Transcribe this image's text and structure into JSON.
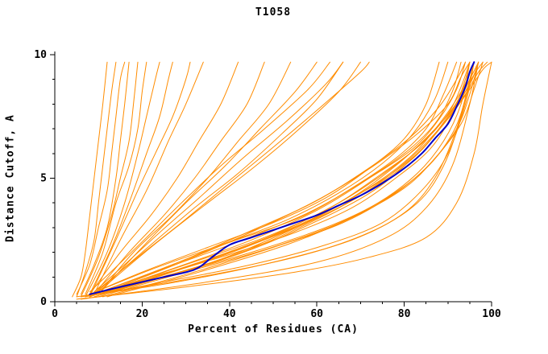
{
  "chart_data": {
    "type": "line",
    "title": "T1058",
    "xlabel": "Percent of Residues (CA)",
    "ylabel": "Distance Cutoff, A",
    "xlim": [
      0,
      100
    ],
    "ylim": [
      0,
      10
    ],
    "x_major_ticks": [
      0,
      20,
      40,
      60,
      80,
      100
    ],
    "x_minor_step": 5,
    "y_major_ticks": [
      0,
      5,
      10
    ],
    "y_minor_step": 1,
    "grid": false,
    "legend": "none",
    "colors": {
      "models": "#ff8c00",
      "highlight": "#0000cc",
      "axis": "#000000"
    },
    "model_series": [
      [
        [
          4,
          0.2
        ],
        [
          6,
          1
        ],
        [
          7,
          2
        ],
        [
          8,
          3.5
        ],
        [
          9,
          5
        ],
        [
          10,
          6.5
        ],
        [
          11,
          8
        ],
        [
          12,
          9.7
        ]
      ],
      [
        [
          5,
          0.2
        ],
        [
          7,
          1.2
        ],
        [
          9,
          2.5
        ],
        [
          10,
          4
        ],
        [
          11,
          5.5
        ],
        [
          12,
          7
        ],
        [
          13,
          8.5
        ],
        [
          14,
          9.7
        ]
      ],
      [
        [
          5,
          0.3
        ],
        [
          8,
          1.5
        ],
        [
          10,
          3
        ],
        [
          12,
          4.5
        ],
        [
          13,
          6
        ],
        [
          14,
          7.5
        ],
        [
          15,
          9
        ],
        [
          16,
          9.7
        ]
      ],
      [
        [
          6,
          0.3
        ],
        [
          9,
          1.5
        ],
        [
          12,
          3
        ],
        [
          14,
          5
        ],
        [
          15,
          6.5
        ],
        [
          16,
          8
        ],
        [
          17,
          9.7
        ]
      ],
      [
        [
          6,
          0.2
        ],
        [
          10,
          1.8
        ],
        [
          13,
          3.5
        ],
        [
          15,
          5
        ],
        [
          17,
          6.5
        ],
        [
          18,
          8
        ],
        [
          19,
          9.7
        ]
      ],
      [
        [
          7,
          0.3
        ],
        [
          11,
          2
        ],
        [
          14,
          4
        ],
        [
          17,
          5.5
        ],
        [
          19,
          7
        ],
        [
          20,
          8.5
        ],
        [
          21,
          9.7
        ]
      ],
      [
        [
          7,
          0.2
        ],
        [
          12,
          2
        ],
        [
          16,
          4
        ],
        [
          19,
          6
        ],
        [
          21,
          7.5
        ],
        [
          23,
          9
        ],
        [
          24,
          9.7
        ]
      ],
      [
        [
          8,
          0.3
        ],
        [
          13,
          2.2
        ],
        [
          17,
          4
        ],
        [
          21,
          6
        ],
        [
          24,
          7.5
        ],
        [
          26,
          9
        ],
        [
          27,
          9.7
        ]
      ],
      [
        [
          8,
          0.2
        ],
        [
          14,
          2.5
        ],
        [
          19,
          4.5
        ],
        [
          23,
          6
        ],
        [
          27,
          7.5
        ],
        [
          30,
          9
        ],
        [
          31,
          9.7
        ]
      ],
      [
        [
          9,
          0.3
        ],
        [
          15,
          2.5
        ],
        [
          21,
          4.5
        ],
        [
          26,
          6.5
        ],
        [
          30,
          8
        ],
        [
          34,
          9.7
        ]
      ],
      [
        [
          8,
          0.3
        ],
        [
          15,
          2
        ],
        [
          22,
          3.5
        ],
        [
          28,
          5
        ],
        [
          33,
          6.5
        ],
        [
          38,
          8
        ],
        [
          42,
          9.7
        ]
      ],
      [
        [
          9,
          0.3
        ],
        [
          17,
          2
        ],
        [
          25,
          3.5
        ],
        [
          32,
          5
        ],
        [
          38,
          6.5
        ],
        [
          44,
          8
        ],
        [
          48,
          9.7
        ]
      ],
      [
        [
          10,
          0.3
        ],
        [
          18,
          2
        ],
        [
          27,
          3.5
        ],
        [
          35,
          5
        ],
        [
          42,
          6.5
        ],
        [
          49,
          8
        ],
        [
          54,
          9.7
        ]
      ],
      [
        [
          10,
          0.3
        ],
        [
          20,
          2.2
        ],
        [
          30,
          4
        ],
        [
          39,
          5.5
        ],
        [
          47,
          7
        ],
        [
          55,
          8.5
        ],
        [
          60,
          9.7
        ]
      ],
      [
        [
          9,
          0.3
        ],
        [
          20,
          2
        ],
        [
          32,
          3.8
        ],
        [
          42,
          5.2
        ],
        [
          52,
          6.8
        ],
        [
          60,
          8.2
        ],
        [
          66,
          9.7
        ]
      ],
      [
        [
          10,
          0.4
        ],
        [
          22,
          2.2
        ],
        [
          35,
          4
        ],
        [
          46,
          5.5
        ],
        [
          56,
          7
        ],
        [
          65,
          8.5
        ],
        [
          70,
          9.7
        ]
      ],
      [
        [
          8,
          0.3
        ],
        [
          20,
          1.2
        ],
        [
          35,
          2.2
        ],
        [
          50,
          3.2
        ],
        [
          62,
          4.2
        ],
        [
          72,
          5.4
        ],
        [
          80,
          6.6
        ],
        [
          85,
          8
        ],
        [
          88,
          9.7
        ]
      ],
      [
        [
          8,
          0.3
        ],
        [
          22,
          1.3
        ],
        [
          38,
          2.3
        ],
        [
          53,
          3.3
        ],
        [
          65,
          4.4
        ],
        [
          75,
          5.6
        ],
        [
          82,
          6.8
        ],
        [
          87,
          8.2
        ],
        [
          90,
          9.7
        ]
      ],
      [
        [
          9,
          0.3
        ],
        [
          24,
          1.3
        ],
        [
          40,
          2.4
        ],
        [
          56,
          3.4
        ],
        [
          68,
          4.6
        ],
        [
          78,
          5.8
        ],
        [
          85,
          7
        ],
        [
          89,
          8.4
        ],
        [
          92,
          9.7
        ]
      ],
      [
        [
          9,
          0.3
        ],
        [
          26,
          1.4
        ],
        [
          43,
          2.5
        ],
        [
          58,
          3.6
        ],
        [
          70,
          4.8
        ],
        [
          80,
          6
        ],
        [
          87,
          7.2
        ],
        [
          91,
          8.5
        ],
        [
          93,
          9.7
        ]
      ],
      [
        [
          10,
          0.3
        ],
        [
          28,
          1.4
        ],
        [
          45,
          2.5
        ],
        [
          60,
          3.7
        ],
        [
          72,
          5
        ],
        [
          82,
          6.2
        ],
        [
          88,
          7.4
        ],
        [
          92,
          8.6
        ],
        [
          94,
          9.7
        ]
      ],
      [
        [
          10,
          0.3
        ],
        [
          30,
          1.5
        ],
        [
          48,
          2.6
        ],
        [
          63,
          3.8
        ],
        [
          75,
          5.2
        ],
        [
          84,
          6.4
        ],
        [
          90,
          7.6
        ],
        [
          93,
          8.7
        ],
        [
          95,
          9.7
        ]
      ],
      [
        [
          11,
          0.3
        ],
        [
          32,
          1.5
        ],
        [
          50,
          2.7
        ],
        [
          65,
          4
        ],
        [
          77,
          5.4
        ],
        [
          85,
          6.6
        ],
        [
          91,
          7.8
        ],
        [
          94,
          8.8
        ],
        [
          96,
          9.7
        ]
      ],
      [
        [
          11,
          0.4
        ],
        [
          34,
          1.6
        ],
        [
          52,
          2.8
        ],
        [
          67,
          4.1
        ],
        [
          78,
          5.5
        ],
        [
          86,
          6.8
        ],
        [
          92,
          8
        ],
        [
          95,
          9
        ],
        [
          97,
          9.7
        ]
      ],
      [
        [
          12,
          0.4
        ],
        [
          36,
          1.6
        ],
        [
          54,
          2.9
        ],
        [
          69,
          4.2
        ],
        [
          80,
          5.6
        ],
        [
          88,
          7
        ],
        [
          93,
          8.2
        ],
        [
          96,
          9.2
        ],
        [
          98,
          9.7
        ]
      ],
      [
        [
          12,
          0.4
        ],
        [
          38,
          1.7
        ],
        [
          56,
          3
        ],
        [
          71,
          4.4
        ],
        [
          82,
          5.8
        ],
        [
          89,
          7.2
        ],
        [
          94,
          8.4
        ],
        [
          97,
          9.3
        ],
        [
          99,
          9.7
        ]
      ],
      [
        [
          13,
          0.4
        ],
        [
          40,
          1.8
        ],
        [
          58,
          3.1
        ],
        [
          73,
          4.5
        ],
        [
          83,
          6
        ],
        [
          90,
          7.4
        ],
        [
          95,
          8.6
        ],
        [
          98,
          9.4
        ],
        [
          100,
          9.7
        ]
      ],
      [
        [
          9,
          0.2
        ],
        [
          25,
          1
        ],
        [
          45,
          2
        ],
        [
          62,
          3
        ],
        [
          74,
          4
        ],
        [
          83,
          5.2
        ],
        [
          89,
          6.5
        ],
        [
          93,
          8
        ],
        [
          95,
          9.7
        ]
      ],
      [
        [
          10,
          0.2
        ],
        [
          28,
          1.1
        ],
        [
          48,
          2.1
        ],
        [
          64,
          3.1
        ],
        [
          76,
          4.2
        ],
        [
          85,
          5.4
        ],
        [
          91,
          6.8
        ],
        [
          94,
          8.2
        ],
        [
          96,
          9.7
        ]
      ],
      [
        [
          11,
          0.2
        ],
        [
          30,
          1.1
        ],
        [
          50,
          2.2
        ],
        [
          66,
          3.2
        ],
        [
          78,
          4.4
        ],
        [
          86,
          5.6
        ],
        [
          92,
          7
        ],
        [
          95,
          8.4
        ],
        [
          97,
          9.7
        ]
      ],
      [
        [
          12,
          0.2
        ],
        [
          33,
          1.2
        ],
        [
          53,
          2.3
        ],
        [
          68,
          3.4
        ],
        [
          80,
          4.6
        ],
        [
          87,
          5.8
        ],
        [
          93,
          7.2
        ],
        [
          96,
          8.6
        ],
        [
          98,
          9.7
        ]
      ],
      [
        [
          8,
          0.2
        ],
        [
          20,
          0.9
        ],
        [
          38,
          1.8
        ],
        [
          55,
          2.8
        ],
        [
          68,
          3.8
        ],
        [
          78,
          5
        ],
        [
          86,
          6.2
        ],
        [
          91,
          7.6
        ],
        [
          94,
          9
        ],
        [
          95,
          9.7
        ]
      ],
      [
        [
          13,
          0.4
        ],
        [
          35,
          1.7
        ],
        [
          55,
          3
        ],
        [
          70,
          4.4
        ],
        [
          81,
          5.8
        ],
        [
          88,
          7.2
        ],
        [
          93,
          8.5
        ],
        [
          96,
          9.7
        ]
      ],
      [
        [
          14,
          0.5
        ],
        [
          38,
          1.9
        ],
        [
          57,
          3.2
        ],
        [
          72,
          4.6
        ],
        [
          83,
          6
        ],
        [
          90,
          7.5
        ],
        [
          95,
          8.8
        ],
        [
          97,
          9.7
        ]
      ],
      [
        [
          9,
          0.3
        ],
        [
          27,
          1.5
        ],
        [
          44,
          2.8
        ],
        [
          59,
          4
        ],
        [
          71,
          5.3
        ],
        [
          81,
          6.6
        ],
        [
          88,
          7.9
        ],
        [
          92,
          9
        ],
        [
          94,
          9.7
        ]
      ],
      [
        [
          10,
          0.3
        ],
        [
          29,
          1.6
        ],
        [
          46,
          2.9
        ],
        [
          61,
          4.2
        ],
        [
          73,
          5.5
        ],
        [
          83,
          6.8
        ],
        [
          90,
          8
        ],
        [
          93,
          9.1
        ],
        [
          95,
          9.7
        ]
      ],
      [
        [
          7,
          0.2
        ],
        [
          25,
          0.8
        ],
        [
          45,
          1.5
        ],
        [
          62,
          2.3
        ],
        [
          75,
          3.2
        ],
        [
          84,
          4.5
        ],
        [
          90,
          6
        ],
        [
          94,
          8
        ],
        [
          96,
          9.7
        ]
      ],
      [
        [
          6,
          0.2
        ],
        [
          28,
          0.8
        ],
        [
          50,
          1.6
        ],
        [
          68,
          2.5
        ],
        [
          80,
          3.6
        ],
        [
          87,
          5
        ],
        [
          92,
          7
        ],
        [
          95,
          9
        ],
        [
          96,
          9.7
        ]
      ],
      [
        [
          5,
          0.2
        ],
        [
          30,
          0.9
        ],
        [
          55,
          1.8
        ],
        [
          72,
          2.8
        ],
        [
          83,
          4
        ],
        [
          89,
          5.5
        ],
        [
          93,
          7.5
        ],
        [
          96,
          9.7
        ]
      ],
      [
        [
          6,
          0.1
        ],
        [
          35,
          0.8
        ],
        [
          60,
          1.6
        ],
        [
          76,
          2.6
        ],
        [
          85,
          3.8
        ],
        [
          91,
          5.5
        ],
        [
          95,
          8
        ],
        [
          97,
          9.7
        ]
      ],
      [
        [
          5,
          0.1
        ],
        [
          30,
          0.6
        ],
        [
          55,
          1.2
        ],
        [
          72,
          1.8
        ],
        [
          85,
          2.6
        ],
        [
          92,
          4
        ],
        [
          96,
          6
        ],
        [
          98,
          8
        ],
        [
          100,
          9.7
        ]
      ],
      [
        [
          9,
          0.4
        ],
        [
          16,
          1.5
        ],
        [
          24,
          2.8
        ],
        [
          33,
          4.2
        ],
        [
          43,
          5.8
        ],
        [
          53,
          7.3
        ],
        [
          62,
          8.8
        ],
        [
          66,
          9.7
        ]
      ],
      [
        [
          10,
          0.5
        ],
        [
          19,
          1.8
        ],
        [
          29,
          3.2
        ],
        [
          40,
          4.8
        ],
        [
          51,
          6.4
        ],
        [
          61,
          7.9
        ],
        [
          70,
          9.3
        ],
        [
          72,
          9.7
        ]
      ],
      [
        [
          8,
          0.4
        ],
        [
          14,
          1.4
        ],
        [
          21,
          2.6
        ],
        [
          29,
          4
        ],
        [
          38,
          5.5
        ],
        [
          48,
          7
        ],
        [
          58,
          8.6
        ],
        [
          63,
          9.7
        ]
      ]
    ],
    "highlight_series": [
      [
        8,
        0.3
      ],
      [
        15,
        0.6
      ],
      [
        25,
        1.0
      ],
      [
        32,
        1.3
      ],
      [
        36,
        1.8
      ],
      [
        40,
        2.3
      ],
      [
        45,
        2.6
      ],
      [
        50,
        2.9
      ],
      [
        55,
        3.2
      ],
      [
        60,
        3.5
      ],
      [
        65,
        3.9
      ],
      [
        70,
        4.3
      ],
      [
        75,
        4.8
      ],
      [
        80,
        5.4
      ],
      [
        84,
        6.0
      ],
      [
        87,
        6.6
      ],
      [
        90,
        7.2
      ],
      [
        92,
        7.9
      ],
      [
        94,
        8.7
      ],
      [
        95,
        9.3
      ],
      [
        96,
        9.7
      ]
    ]
  }
}
